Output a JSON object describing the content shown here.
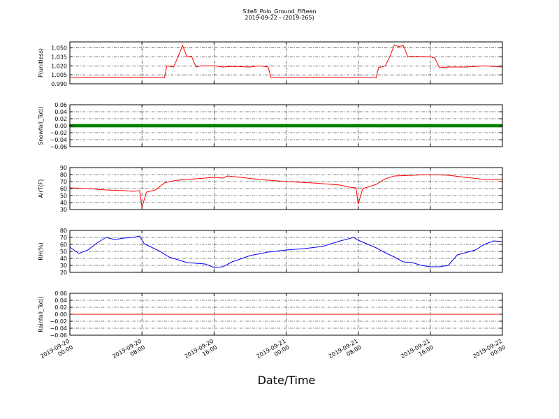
{
  "figure": {
    "title": "Site8_Polo_Ground_Fifteen",
    "subtitle": "2019-09-22 - (2019-265)",
    "xlabel": "Date/Time"
  },
  "chart_data": [
    {
      "type": "line",
      "ylabel": "P(unitless)",
      "xlim": [
        "2019-09-20 00:00",
        "2019-09-22 00:00"
      ],
      "ylim": [
        0.99,
        1.06
      ],
      "yticks": [
        "0.990",
        "1.005",
        "1.020",
        "1.035",
        "1.050"
      ],
      "grid": true,
      "series": [
        {
          "color": "#ff0000",
          "points": [
            [
              "2019-09-20 00:00",
              1.0
            ],
            [
              "2019-09-20 01:00",
              1.0
            ],
            [
              "2019-09-20 02:00",
              1.001
            ],
            [
              "2019-09-20 03:00",
              1.0
            ],
            [
              "2019-09-20 05:00",
              1.001
            ],
            [
              "2019-09-20 06:00",
              1.0
            ],
            [
              "2019-09-20 08:00",
              1.001
            ],
            [
              "2019-09-20 09:00",
              1.0
            ],
            [
              "2019-09-20 10:30",
              1.0
            ],
            [
              "2019-09-20 10:45",
              1.02
            ],
            [
              "2019-09-20 11:30",
              1.018
            ],
            [
              "2019-09-20 12:00",
              1.035
            ],
            [
              "2019-09-20 12:30",
              1.054
            ],
            [
              "2019-09-20 13:00",
              1.035
            ],
            [
              "2019-09-20 13:30",
              1.036
            ],
            [
              "2019-09-20 14:00",
              1.018
            ],
            [
              "2019-09-20 14:30",
              1.02
            ],
            [
              "2019-09-20 16:00",
              1.02
            ],
            [
              "2019-09-20 17:00",
              1.018
            ],
            [
              "2019-09-20 18:00",
              1.019
            ],
            [
              "2019-09-20 20:00",
              1.018
            ],
            [
              "2019-09-20 21:00",
              1.02
            ],
            [
              "2019-09-20 22:00",
              1.018
            ],
            [
              "2019-09-20 22:20",
              1.0
            ],
            [
              "2019-09-21 01:00",
              1.0
            ],
            [
              "2019-09-21 03:00",
              1.001
            ],
            [
              "2019-09-21 06:00",
              1.0
            ],
            [
              "2019-09-21 09:00",
              1.0
            ],
            [
              "2019-09-21 10:00",
              1.0
            ],
            [
              "2019-09-21 10:15",
              1.017
            ],
            [
              "2019-09-21 11:00",
              1.02
            ],
            [
              "2019-09-21 11:30",
              1.035
            ],
            [
              "2019-09-21 12:00",
              1.055
            ],
            [
              "2019-09-21 12:30",
              1.052
            ],
            [
              "2019-09-21 13:00",
              1.054
            ],
            [
              "2019-09-21 13:30",
              1.035
            ],
            [
              "2019-09-21 14:00",
              1.036
            ],
            [
              "2019-09-21 16:00",
              1.035
            ],
            [
              "2019-09-21 16:30",
              1.033
            ],
            [
              "2019-09-21 17:00",
              1.017
            ],
            [
              "2019-09-21 18:00",
              1.018
            ],
            [
              "2019-09-21 20:00",
              1.018
            ],
            [
              "2019-09-21 22:00",
              1.02
            ],
            [
              "2019-09-22 00:00",
              1.018
            ]
          ]
        }
      ]
    },
    {
      "type": "line",
      "ylabel": "Snowfall_Tot()",
      "xlim": [
        "2019-09-20 00:00",
        "2019-09-22 00:00"
      ],
      "ylim": [
        -0.06,
        0.06
      ],
      "yticks": [
        "−0.06",
        "−0.04",
        "−0.02",
        "0.00",
        "0.02",
        "0.04",
        "0.06"
      ],
      "grid": true,
      "series": [
        {
          "color": "#008000",
          "marker": "dot",
          "points": [
            [
              "2019-09-20 00:00",
              0.0
            ],
            [
              "2019-09-22 00:00",
              0.0
            ]
          ]
        }
      ]
    },
    {
      "type": "line",
      "ylabel": "AirT(F)",
      "xlim": [
        "2019-09-20 00:00",
        "2019-09-22 00:00"
      ],
      "ylim": [
        30,
        90
      ],
      "yticks": [
        "30",
        "40",
        "50",
        "60",
        "70",
        "80",
        "90"
      ],
      "grid": true,
      "series": [
        {
          "color": "#ff0000",
          "points": [
            [
              "2019-09-20 00:00",
              61
            ],
            [
              "2019-09-20 02:00",
              60
            ],
            [
              "2019-09-20 04:00",
              58
            ],
            [
              "2019-09-20 06:00",
              57
            ],
            [
              "2019-09-20 07:00",
              56
            ],
            [
              "2019-09-20 07:45",
              57
            ],
            [
              "2019-09-20 08:00",
              33
            ],
            [
              "2019-09-20 08:30",
              55
            ],
            [
              "2019-09-20 09:30",
              58
            ],
            [
              "2019-09-20 10:30",
              68
            ],
            [
              "2019-09-20 11:00",
              70
            ],
            [
              "2019-09-20 12:00",
              72
            ],
            [
              "2019-09-20 14:00",
              74
            ],
            [
              "2019-09-20 16:00",
              76
            ],
            [
              "2019-09-20 17:00",
              75
            ],
            [
              "2019-09-20 17:30",
              78
            ],
            [
              "2019-09-20 19:00",
              76
            ],
            [
              "2019-09-20 21:00",
              73
            ],
            [
              "2019-09-21 00:00",
              70
            ],
            [
              "2019-09-21 03:00",
              68
            ],
            [
              "2019-09-21 06:00",
              65
            ],
            [
              "2019-09-21 07:00",
              62
            ],
            [
              "2019-09-21 07:45",
              61
            ],
            [
              "2019-09-21 08:00",
              38
            ],
            [
              "2019-09-21 08:30",
              60
            ],
            [
              "2019-09-21 10:00",
              66
            ],
            [
              "2019-09-21 11:00",
              74
            ],
            [
              "2019-09-21 12:00",
              78
            ],
            [
              "2019-09-21 14:00",
              79
            ],
            [
              "2019-09-21 16:00",
              80
            ],
            [
              "2019-09-21 18:00",
              79
            ],
            [
              "2019-09-21 20:00",
              76
            ],
            [
              "2019-09-21 22:00",
              73
            ],
            [
              "2019-09-22 00:00",
              73
            ]
          ]
        }
      ]
    },
    {
      "type": "line",
      "ylabel": "RH(%)",
      "xlim": [
        "2019-09-20 00:00",
        "2019-09-22 00:00"
      ],
      "ylim": [
        20,
        80
      ],
      "yticks": [
        "20",
        "30",
        "40",
        "50",
        "60",
        "70",
        "80"
      ],
      "grid": true,
      "series": [
        {
          "color": "#0000ff",
          "points": [
            [
              "2019-09-20 00:00",
              56
            ],
            [
              "2019-09-20 01:00",
              47
            ],
            [
              "2019-09-20 02:00",
              52
            ],
            [
              "2019-09-20 03:00",
              62
            ],
            [
              "2019-09-20 04:00",
              70
            ],
            [
              "2019-09-20 05:00",
              67
            ],
            [
              "2019-09-20 06:00",
              69
            ],
            [
              "2019-09-20 07:00",
              70
            ],
            [
              "2019-09-20 07:45",
              72
            ],
            [
              "2019-09-20 08:15",
              61
            ],
            [
              "2019-09-20 10:00",
              50
            ],
            [
              "2019-09-20 11:00",
              42
            ],
            [
              "2019-09-20 12:00",
              38
            ],
            [
              "2019-09-20 13:00",
              34
            ],
            [
              "2019-09-20 14:00",
              33
            ],
            [
              "2019-09-20 15:00",
              32
            ],
            [
              "2019-09-20 16:00",
              27
            ],
            [
              "2019-09-20 17:00",
              28
            ],
            [
              "2019-09-20 18:00",
              35
            ],
            [
              "2019-09-20 20:00",
              44
            ],
            [
              "2019-09-20 22:00",
              49
            ],
            [
              "2019-09-21 00:00",
              52
            ],
            [
              "2019-09-21 02:00",
              54
            ],
            [
              "2019-09-21 04:00",
              57
            ],
            [
              "2019-09-21 06:00",
              65
            ],
            [
              "2019-09-21 07:30",
              70
            ],
            [
              "2019-09-21 08:00",
              66
            ],
            [
              "2019-09-21 10:00",
              55
            ],
            [
              "2019-09-21 11:00",
              48
            ],
            [
              "2019-09-21 12:00",
              42
            ],
            [
              "2019-09-21 13:00",
              35
            ],
            [
              "2019-09-21 14:00",
              34
            ],
            [
              "2019-09-21 15:00",
              30
            ],
            [
              "2019-09-21 16:00",
              28
            ],
            [
              "2019-09-21 17:00",
              28
            ],
            [
              "2019-09-21 18:00",
              30
            ],
            [
              "2019-09-21 19:00",
              45
            ],
            [
              "2019-09-21 21:00",
              52
            ],
            [
              "2019-09-21 22:00",
              60
            ],
            [
              "2019-09-21 23:00",
              65
            ],
            [
              "2019-09-22 00:00",
              64
            ]
          ]
        }
      ]
    },
    {
      "type": "line",
      "ylabel": "Rainfall_Tot()",
      "xlim": [
        "2019-09-20 00:00",
        "2019-09-22 00:00"
      ],
      "ylim": [
        -0.06,
        0.06
      ],
      "yticks": [
        "−0.06",
        "−0.04",
        "−0.02",
        "0.00",
        "0.02",
        "0.04",
        "0.06"
      ],
      "grid": true,
      "series": [
        {
          "color": "#ff0000",
          "points": [
            [
              "2019-09-20 00:00",
              0.0
            ],
            [
              "2019-09-22 00:00",
              0.0
            ]
          ]
        }
      ]
    }
  ],
  "xticks": [
    {
      "at": "2019-09-20 00:00",
      "line1": "2019-09-20",
      "line2": "00:00"
    },
    {
      "at": "2019-09-20 08:00",
      "line1": "2019-09-20",
      "line2": "08:00"
    },
    {
      "at": "2019-09-20 16:00",
      "line1": "2019-09-20",
      "line2": "16:00"
    },
    {
      "at": "2019-09-21 00:00",
      "line1": "2019-09-21",
      "line2": "00:00"
    },
    {
      "at": "2019-09-21 08:00",
      "line1": "2019-09-21",
      "line2": "08:00"
    },
    {
      "at": "2019-09-21 16:00",
      "line1": "2019-09-21",
      "line2": "16:00"
    },
    {
      "at": "2019-09-22 00:00",
      "line1": "2019-09-22",
      "line2": "00:00"
    }
  ]
}
